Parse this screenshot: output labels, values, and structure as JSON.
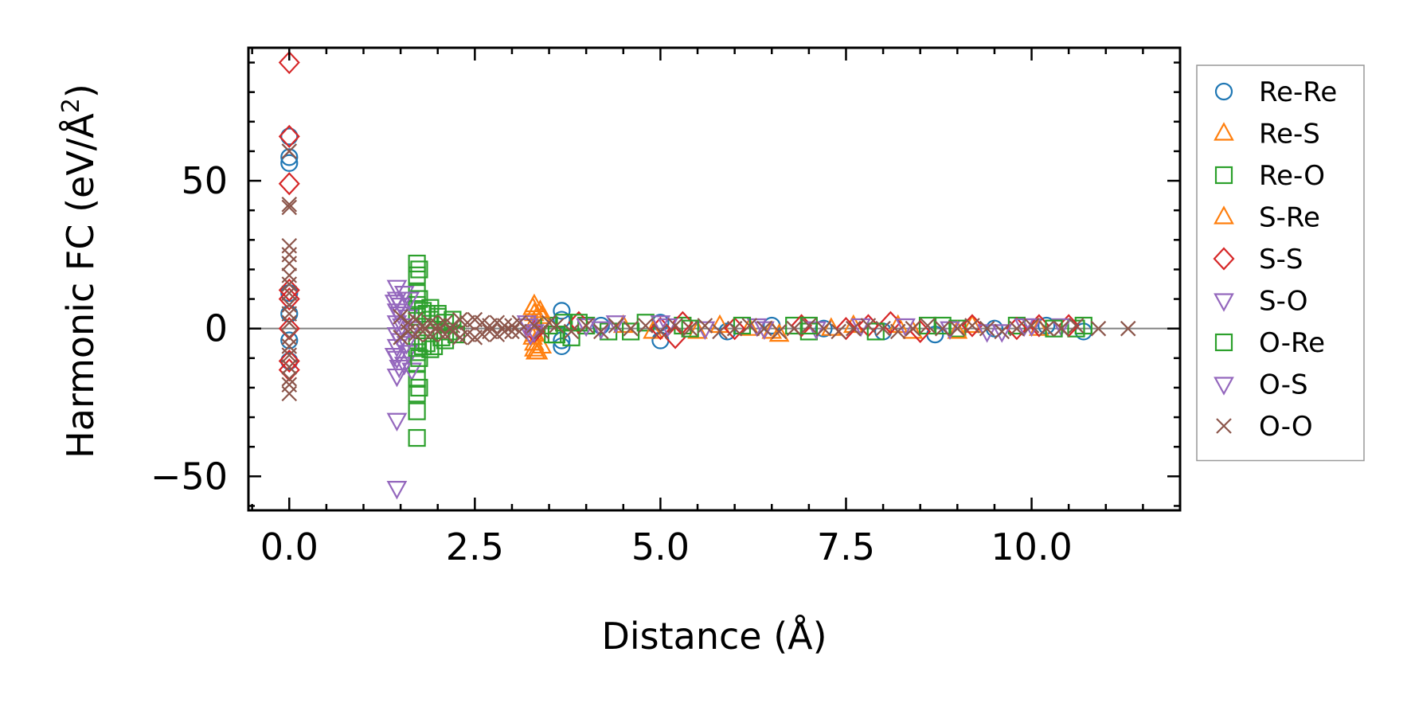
{
  "chart_data": {
    "type": "scatter",
    "xlabel": "Distance (Å)",
    "ylabel_main": "Harmonic FC (eV/Å",
    "ylabel_sup": "2",
    "ylabel_close": ")",
    "xlim": [
      -0.55,
      12.0
    ],
    "ylim": [
      -61.5,
      95.0
    ],
    "x_ticks": [
      0,
      2.5,
      5,
      7.5,
      10
    ],
    "x_tick_labels": [
      "0.0",
      "2.5",
      "5.0",
      "7.5",
      "10.0"
    ],
    "y_ticks": [
      -50,
      0,
      50
    ],
    "y_tick_labels": [
      "−50",
      "0",
      "50"
    ],
    "zero_line": 0,
    "legend_position": "outside-right",
    "series": [
      {
        "name": "Re-Re",
        "marker": "circle",
        "color": "#1f77b4",
        "points": [
          [
            0,
            65
          ],
          [
            0,
            58
          ],
          [
            0,
            56
          ],
          [
            0,
            12
          ],
          [
            0,
            5
          ],
          [
            0,
            -4
          ],
          [
            0,
            -11
          ],
          [
            3.67,
            6
          ],
          [
            3.67,
            3
          ],
          [
            3.67,
            -4
          ],
          [
            3.67,
            -6
          ],
          [
            4.2,
            1
          ],
          [
            5.0,
            -4
          ],
          [
            5.0,
            2
          ],
          [
            5.9,
            -1
          ],
          [
            6.5,
            1
          ],
          [
            7.2,
            0
          ],
          [
            8.0,
            -1
          ],
          [
            8.7,
            -2
          ],
          [
            9.5,
            0
          ],
          [
            10.2,
            1
          ],
          [
            10.7,
            -1
          ]
        ]
      },
      {
        "name": "Re-S",
        "marker": "triangle-up",
        "color": "#ff7f0e",
        "points": [
          [
            3.3,
            8
          ],
          [
            3.3,
            5
          ],
          [
            3.3,
            2
          ],
          [
            3.3,
            -2
          ],
          [
            3.3,
            -5
          ],
          [
            3.3,
            -7
          ],
          [
            3.35,
            -8
          ],
          [
            3.4,
            4
          ],
          [
            3.4,
            -6
          ],
          [
            4.5,
            1
          ],
          [
            5.5,
            -1
          ],
          [
            6.2,
            0
          ],
          [
            6.5,
            -1
          ],
          [
            7.6,
            1
          ],
          [
            8.4,
            -1
          ],
          [
            9.2,
            1
          ],
          [
            10.1,
            0
          ]
        ]
      },
      {
        "name": "Re-O",
        "marker": "square",
        "color": "#2ca02c",
        "points": [
          [
            1.72,
            22
          ],
          [
            1.72,
            18
          ],
          [
            1.72,
            12
          ],
          [
            1.72,
            8
          ],
          [
            1.72,
            4
          ],
          [
            1.72,
            -4
          ],
          [
            1.72,
            -8
          ],
          [
            1.72,
            -12
          ],
          [
            1.72,
            -17
          ],
          [
            1.72,
            -22
          ],
          [
            1.72,
            -28
          ],
          [
            1.72,
            -37
          ],
          [
            1.85,
            5
          ],
          [
            1.85,
            -5
          ],
          [
            1.9,
            3
          ],
          [
            1.95,
            -6
          ],
          [
            2.0,
            4
          ],
          [
            2.05,
            -3
          ],
          [
            2.1,
            2
          ],
          [
            2.15,
            -1
          ],
          [
            3.5,
            1
          ],
          [
            3.55,
            -2
          ],
          [
            3.7,
            2
          ],
          [
            3.8,
            -3
          ],
          [
            4.0,
            1
          ],
          [
            4.3,
            -1
          ],
          [
            4.8,
            2
          ],
          [
            5.3,
            1
          ],
          [
            6.8,
            1
          ],
          [
            7.0,
            -1
          ],
          [
            8.6,
            1
          ],
          [
            9.0,
            0
          ],
          [
            9.8,
            1
          ],
          [
            10.6,
            0
          ],
          [
            10.7,
            1
          ]
        ]
      },
      {
        "name": "S-Re",
        "marker": "triangle-up",
        "color": "#ff7f0e",
        "points": [
          [
            3.28,
            7
          ],
          [
            3.28,
            -3
          ],
          [
            3.32,
            -8
          ],
          [
            3.38,
            6
          ],
          [
            4.9,
            -1
          ],
          [
            5.8,
            1
          ],
          [
            6.6,
            -2
          ],
          [
            7.3,
            0
          ],
          [
            8.2,
            1
          ],
          [
            9.0,
            -1
          ]
        ]
      },
      {
        "name": "S-S",
        "marker": "diamond",
        "color": "#d62728",
        "points": [
          [
            0,
            90
          ],
          [
            0,
            65
          ],
          [
            0,
            49
          ],
          [
            0,
            13
          ],
          [
            0,
            10
          ],
          [
            0,
            0
          ],
          [
            0,
            -11
          ],
          [
            0,
            -14
          ],
          [
            3.3,
            -1
          ],
          [
            3.9,
            2
          ],
          [
            5.0,
            0
          ],
          [
            5.2,
            -3
          ],
          [
            5.3,
            2
          ],
          [
            6.0,
            0
          ],
          [
            6.9,
            1
          ],
          [
            7.5,
            0
          ],
          [
            7.8,
            1
          ],
          [
            8.1,
            2
          ],
          [
            8.5,
            -1
          ],
          [
            9.2,
            1
          ],
          [
            9.8,
            0
          ],
          [
            10.1,
            1
          ],
          [
            10.5,
            1
          ]
        ]
      },
      {
        "name": "S-O",
        "marker": "triangle-down",
        "color": "#9467bd",
        "points": [
          [
            1.45,
            14
          ],
          [
            1.45,
            10
          ],
          [
            1.45,
            6
          ],
          [
            1.45,
            2
          ],
          [
            1.45,
            -2
          ],
          [
            1.45,
            -6
          ],
          [
            1.45,
            -10
          ],
          [
            1.45,
            -16
          ],
          [
            1.45,
            -31
          ],
          [
            1.45,
            -54
          ],
          [
            1.5,
            8
          ],
          [
            1.5,
            -4
          ],
          [
            1.55,
            12
          ],
          [
            1.55,
            -12
          ],
          [
            1.6,
            4
          ],
          [
            1.6,
            -8
          ],
          [
            1.65,
            0
          ],
          [
            1.65,
            -14
          ],
          [
            3.2,
            2
          ],
          [
            3.25,
            -2
          ],
          [
            4.0,
            1
          ],
          [
            4.4,
            2
          ],
          [
            5.0,
            2
          ],
          [
            5.6,
            0
          ],
          [
            6.3,
            1
          ],
          [
            7.1,
            0
          ],
          [
            8.3,
            1
          ],
          [
            9.4,
            -1
          ],
          [
            9.9,
            1
          ],
          [
            10.4,
            1
          ]
        ]
      },
      {
        "name": "O-Re",
        "marker": "square",
        "color": "#2ca02c",
        "points": [
          [
            1.75,
            20
          ],
          [
            1.75,
            10
          ],
          [
            1.75,
            -10
          ],
          [
            1.75,
            -20
          ],
          [
            1.8,
            6
          ],
          [
            1.8,
            -6
          ],
          [
            1.9,
            7
          ],
          [
            1.9,
            -7
          ],
          [
            2.0,
            5
          ],
          [
            2.1,
            -4
          ],
          [
            2.2,
            3
          ],
          [
            2.25,
            -2
          ],
          [
            3.6,
            -2
          ],
          [
            3.9,
            2
          ],
          [
            4.6,
            -1
          ],
          [
            5.4,
            0
          ],
          [
            6.1,
            1
          ],
          [
            7.0,
            1
          ],
          [
            7.9,
            -1
          ],
          [
            8.8,
            1
          ],
          [
            10.3,
            0
          ]
        ]
      },
      {
        "name": "O-S",
        "marker": "triangle-down",
        "color": "#9467bd",
        "points": [
          [
            1.42,
            9
          ],
          [
            1.42,
            -9
          ],
          [
            1.48,
            5
          ],
          [
            1.48,
            -13
          ],
          [
            1.52,
            1
          ],
          [
            1.58,
            -5
          ],
          [
            1.62,
            10
          ],
          [
            3.22,
            1
          ],
          [
            3.3,
            -1
          ],
          [
            4.2,
            0
          ],
          [
            5.1,
            1
          ],
          [
            6.4,
            0
          ],
          [
            7.7,
            1
          ],
          [
            8.9,
            0
          ],
          [
            9.6,
            -1
          ],
          [
            10.0,
            1
          ]
        ]
      },
      {
        "name": "O-O",
        "marker": "x",
        "color": "#8c564b",
        "points": [
          [
            0,
            60
          ],
          [
            0,
            42
          ],
          [
            0,
            41
          ],
          [
            0,
            28
          ],
          [
            0,
            25
          ],
          [
            0,
            22
          ],
          [
            0,
            18
          ],
          [
            0,
            15
          ],
          [
            0,
            12
          ],
          [
            0,
            8
          ],
          [
            0,
            5
          ],
          [
            0,
            2
          ],
          [
            0,
            -3
          ],
          [
            0,
            -6
          ],
          [
            0,
            -9
          ],
          [
            0,
            -13
          ],
          [
            0,
            -17
          ],
          [
            0,
            -19
          ],
          [
            0,
            -22
          ],
          [
            1.5,
            4
          ],
          [
            1.5,
            -3
          ],
          [
            1.6,
            2
          ],
          [
            1.6,
            -1
          ],
          [
            1.7,
            3
          ],
          [
            1.7,
            -2
          ],
          [
            1.8,
            1
          ],
          [
            1.8,
            -1
          ],
          [
            1.9,
            2
          ],
          [
            1.9,
            -2
          ],
          [
            2.0,
            1
          ],
          [
            2.0,
            -1
          ],
          [
            2.1,
            2
          ],
          [
            2.1,
            -2
          ],
          [
            2.2,
            1
          ],
          [
            2.2,
            -1
          ],
          [
            2.3,
            3
          ],
          [
            2.3,
            -3
          ],
          [
            2.4,
            2
          ],
          [
            2.4,
            -2
          ],
          [
            2.5,
            3
          ],
          [
            2.5,
            -3
          ],
          [
            2.6,
            2
          ],
          [
            2.6,
            -2
          ],
          [
            2.7,
            1
          ],
          [
            2.7,
            -1
          ],
          [
            2.8,
            2
          ],
          [
            2.8,
            -2
          ],
          [
            2.9,
            1
          ],
          [
            2.9,
            -1
          ],
          [
            3.0,
            1
          ],
          [
            3.0,
            -1
          ],
          [
            3.1,
            2
          ],
          [
            3.1,
            -1
          ],
          [
            3.3,
            1
          ],
          [
            3.4,
            -1
          ],
          [
            3.5,
            2
          ],
          [
            3.6,
            1
          ],
          [
            3.8,
            -1
          ],
          [
            4.0,
            1
          ],
          [
            4.2,
            -1
          ],
          [
            4.4,
            1
          ],
          [
            4.6,
            0
          ],
          [
            4.8,
            1
          ],
          [
            5.0,
            -1
          ],
          [
            5.2,
            1
          ],
          [
            5.4,
            0
          ],
          [
            5.6,
            1
          ],
          [
            5.8,
            -1
          ],
          [
            6.0,
            0
          ],
          [
            6.2,
            1
          ],
          [
            6.4,
            0
          ],
          [
            6.6,
            -1
          ],
          [
            6.8,
            0
          ],
          [
            7.0,
            1
          ],
          [
            7.2,
            0
          ],
          [
            7.4,
            -1
          ],
          [
            7.6,
            0
          ],
          [
            7.8,
            1
          ],
          [
            8.0,
            0
          ],
          [
            8.2,
            -1
          ],
          [
            8.4,
            0
          ],
          [
            8.6,
            1
          ],
          [
            8.8,
            0
          ],
          [
            9.0,
            0
          ],
          [
            9.2,
            1
          ],
          [
            9.4,
            0
          ],
          [
            9.6,
            -1
          ],
          [
            9.8,
            0
          ],
          [
            10.0,
            1
          ],
          [
            10.2,
            0
          ],
          [
            10.4,
            0
          ],
          [
            10.6,
            1
          ],
          [
            10.9,
            0
          ],
          [
            11.3,
            0
          ]
        ]
      }
    ]
  }
}
